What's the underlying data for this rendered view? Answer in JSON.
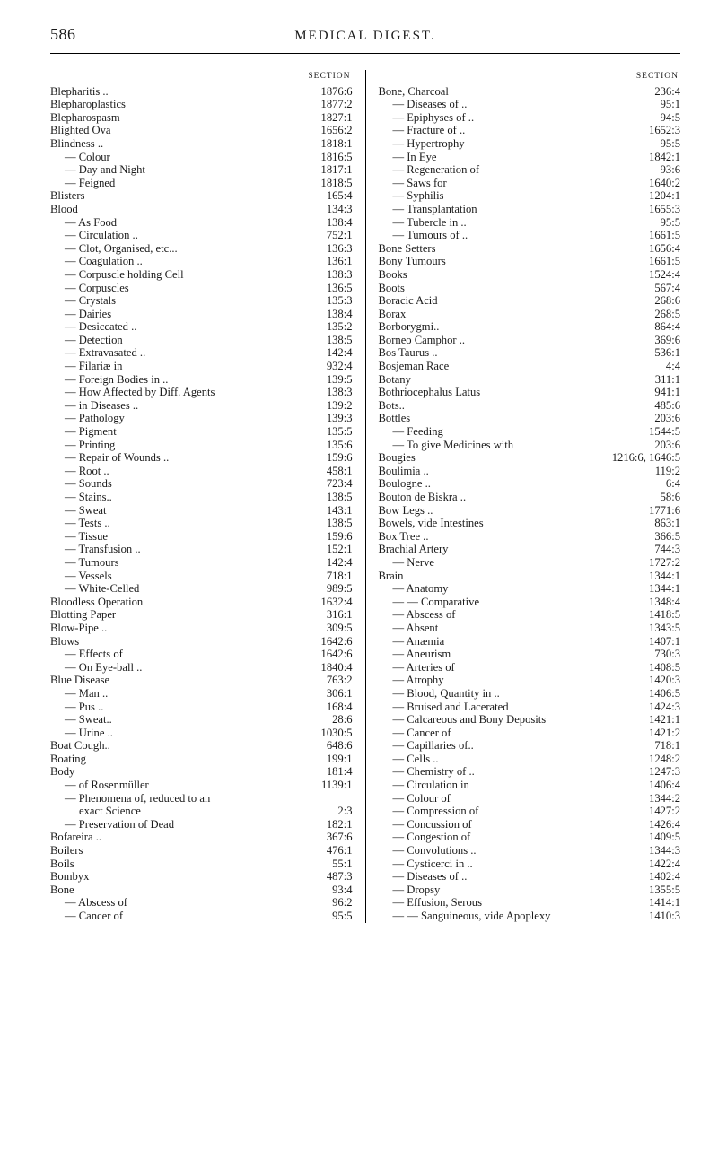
{
  "page_number": "586",
  "header_title": "MEDICAL DIGEST.",
  "section_heading": "SECTION",
  "columns": {
    "left": [
      {
        "label": "Blepharitis ..",
        "num": "1876:6",
        "indent": 0
      },
      {
        "label": "Blepharoplastics",
        "num": "1877:2",
        "indent": 0
      },
      {
        "label": "Blepharospasm",
        "num": "1827:1",
        "indent": 0
      },
      {
        "label": "Blighted Ova",
        "num": "1656:2",
        "indent": 0
      },
      {
        "label": "Blindness ..",
        "num": "1818:1",
        "indent": 0
      },
      {
        "label": "— Colour",
        "num": "1816:5",
        "indent": 1
      },
      {
        "label": "— Day and Night",
        "num": "1817:1",
        "indent": 1
      },
      {
        "label": "— Feigned",
        "num": "1818:5",
        "indent": 1
      },
      {
        "label": "Blisters",
        "num": "165:4",
        "indent": 0
      },
      {
        "label": "Blood",
        "num": "134:3",
        "indent": 0
      },
      {
        "label": "— As Food",
        "num": "138:4",
        "indent": 1
      },
      {
        "label": "— Circulation ..",
        "num": "752:1",
        "indent": 1
      },
      {
        "label": "— Clot, Organised, etc...",
        "num": "136:3",
        "indent": 1
      },
      {
        "label": "— Coagulation ..",
        "num": "136:1",
        "indent": 1
      },
      {
        "label": "— Corpuscle holding Cell",
        "num": "138:3",
        "indent": 1
      },
      {
        "label": "— Corpuscles",
        "num": "136:5",
        "indent": 1
      },
      {
        "label": "— Crystals",
        "num": "135:3",
        "indent": 1
      },
      {
        "label": "— Dairies",
        "num": "138:4",
        "indent": 1
      },
      {
        "label": "— Desiccated ..",
        "num": "135:2",
        "indent": 1
      },
      {
        "label": "— Detection",
        "num": "138:5",
        "indent": 1
      },
      {
        "label": "— Extravasated ..",
        "num": "142:4",
        "indent": 1
      },
      {
        "label": "— Filariæ in",
        "num": "932:4",
        "indent": 1
      },
      {
        "label": "— Foreign Bodies in ..",
        "num": "139:5",
        "indent": 1
      },
      {
        "label": "— How Affected by Diff. Agents",
        "num": "138:3",
        "indent": 1
      },
      {
        "label": "— in Diseases ..",
        "num": "139:2",
        "indent": 1
      },
      {
        "label": "— Pathology",
        "num": "139:3",
        "indent": 1
      },
      {
        "label": "— Pigment",
        "num": "135:5",
        "indent": 1
      },
      {
        "label": "— Printing",
        "num": "135:6",
        "indent": 1
      },
      {
        "label": "— Repair of Wounds ..",
        "num": "159:6",
        "indent": 1
      },
      {
        "label": "— Root ..",
        "num": "458:1",
        "indent": 1
      },
      {
        "label": "— Sounds",
        "num": "723:4",
        "indent": 1
      },
      {
        "label": "— Stains..",
        "num": "138:5",
        "indent": 1
      },
      {
        "label": "— Sweat",
        "num": "143:1",
        "indent": 1
      },
      {
        "label": "— Tests ..",
        "num": "138:5",
        "indent": 1
      },
      {
        "label": "— Tissue",
        "num": "159:6",
        "indent": 1
      },
      {
        "label": "— Transfusion ..",
        "num": "152:1",
        "indent": 1
      },
      {
        "label": "— Tumours",
        "num": "142:4",
        "indent": 1
      },
      {
        "label": "— Vessels",
        "num": "718:1",
        "indent": 1
      },
      {
        "label": "— White-Celled",
        "num": "989:5",
        "indent": 1
      },
      {
        "label": "Bloodless Operation",
        "num": "1632:4",
        "indent": 0
      },
      {
        "label": "Blotting Paper",
        "num": "316:1",
        "indent": 0
      },
      {
        "label": "Blow-Pipe ..",
        "num": "309:5",
        "indent": 0
      },
      {
        "label": "Blows",
        "num": "1642:6",
        "indent": 0
      },
      {
        "label": "— Effects of",
        "num": "1642:6",
        "indent": 1
      },
      {
        "label": "— On Eye-ball ..",
        "num": "1840:4",
        "indent": 1
      },
      {
        "label": "Blue Disease",
        "num": "763:2",
        "indent": 0
      },
      {
        "label": "— Man ..",
        "num": "306:1",
        "indent": 1
      },
      {
        "label": "— Pus ..",
        "num": "168:4",
        "indent": 1
      },
      {
        "label": "— Sweat..",
        "num": "28:6",
        "indent": 1
      },
      {
        "label": "— Urine ..",
        "num": "1030:5",
        "indent": 1
      },
      {
        "label": "Boat Cough..",
        "num": "648:6",
        "indent": 0
      },
      {
        "label": "Boating",
        "num": "199:1",
        "indent": 0
      },
      {
        "label": "Body",
        "num": "181:4",
        "indent": 0
      },
      {
        "label": "— of Rosenmüller",
        "num": "1139:1",
        "indent": 1
      },
      {
        "label": "— Phenomena of, reduced to an",
        "num": "",
        "indent": 1
      },
      {
        "label": "exact Science",
        "num": "2:3",
        "indent": 2
      },
      {
        "label": "— Preservation of Dead",
        "num": "182:1",
        "indent": 1
      },
      {
        "label": "Bofareira ..",
        "num": "367:6",
        "indent": 0
      },
      {
        "label": "Boilers",
        "num": "476:1",
        "indent": 0
      },
      {
        "label": "Boils",
        "num": "55:1",
        "indent": 0
      },
      {
        "label": "Bombyx",
        "num": "487:3",
        "indent": 0
      },
      {
        "label": "Bone",
        "num": "93:4",
        "indent": 0
      },
      {
        "label": "— Abscess of",
        "num": "96:2",
        "indent": 1
      },
      {
        "label": "— Cancer of",
        "num": "95:5",
        "indent": 1
      }
    ],
    "right": [
      {
        "label": "Bone, Charcoal",
        "num": "236:4",
        "indent": 0
      },
      {
        "label": "— Diseases of ..",
        "num": "95:1",
        "indent": 1
      },
      {
        "label": "— Epiphyses of ..",
        "num": "94:5",
        "indent": 1
      },
      {
        "label": "— Fracture of ..",
        "num": "1652:3",
        "indent": 1
      },
      {
        "label": "— Hypertrophy",
        "num": "95:5",
        "indent": 1
      },
      {
        "label": "— In Eye",
        "num": "1842:1",
        "indent": 1
      },
      {
        "label": "— Regeneration of",
        "num": "93:6",
        "indent": 1
      },
      {
        "label": "— Saws for",
        "num": "1640:2",
        "indent": 1
      },
      {
        "label": "— Syphilis",
        "num": "1204:1",
        "indent": 1
      },
      {
        "label": "— Transplantation",
        "num": "1655:3",
        "indent": 1
      },
      {
        "label": "— Tubercle in ..",
        "num": "95:5",
        "indent": 1
      },
      {
        "label": "— Tumours of ..",
        "num": "1661:5",
        "indent": 1
      },
      {
        "label": "Bone Setters",
        "num": "1656:4",
        "indent": 0
      },
      {
        "label": "Bony Tumours",
        "num": "1661:5",
        "indent": 0
      },
      {
        "label": "Books",
        "num": "1524:4",
        "indent": 0
      },
      {
        "label": "Boots",
        "num": "567:4",
        "indent": 0
      },
      {
        "label": "Boracic Acid",
        "num": "268:6",
        "indent": 0
      },
      {
        "label": "Borax",
        "num": "268:5",
        "indent": 0
      },
      {
        "label": "Borborygmi..",
        "num": "864:4",
        "indent": 0
      },
      {
        "label": "Borneo Camphor ..",
        "num": "369:6",
        "indent": 0
      },
      {
        "label": "Bos Taurus ..",
        "num": "536:1",
        "indent": 0
      },
      {
        "label": "Bosjeman Race",
        "num": "4:4",
        "indent": 0
      },
      {
        "label": "Botany",
        "num": "311:1",
        "indent": 0
      },
      {
        "label": "Bothriocephalus Latus",
        "num": "941:1",
        "indent": 0
      },
      {
        "label": "Bots..",
        "num": "485:6",
        "indent": 0
      },
      {
        "label": "Bottles",
        "num": "203:6",
        "indent": 0
      },
      {
        "label": "— Feeding",
        "num": "1544:5",
        "indent": 1
      },
      {
        "label": "— To give Medicines with",
        "num": "203:6",
        "indent": 1
      },
      {
        "label": "Bougies",
        "num": "1216:6, 1646:5",
        "indent": 0
      },
      {
        "label": "Boulimia ..",
        "num": "119:2",
        "indent": 0
      },
      {
        "label": "Boulogne ..",
        "num": "6:4",
        "indent": 0
      },
      {
        "label": "Bouton de Biskra ..",
        "num": "58:6",
        "indent": 0
      },
      {
        "label": "Bow Legs ..",
        "num": "1771:6",
        "indent": 0
      },
      {
        "label": "Bowels, vide Intestines",
        "num": "863:1",
        "indent": 0
      },
      {
        "label": "Box Tree ..",
        "num": "366:5",
        "indent": 0
      },
      {
        "label": "Brachial Artery",
        "num": "744:3",
        "indent": 0
      },
      {
        "label": "— Nerve",
        "num": "1727:2",
        "indent": 1
      },
      {
        "label": "Brain",
        "num": "1344:1",
        "indent": 0
      },
      {
        "label": "— Anatomy",
        "num": "1344:1",
        "indent": 1
      },
      {
        "label": "— — Comparative",
        "num": "1348:4",
        "indent": 1
      },
      {
        "label": "— Abscess of",
        "num": "1418:5",
        "indent": 1
      },
      {
        "label": "— Absent",
        "num": "1343:5",
        "indent": 1
      },
      {
        "label": "— Anæmia",
        "num": "1407:1",
        "indent": 1
      },
      {
        "label": "— Aneurism",
        "num": "730:3",
        "indent": 1
      },
      {
        "label": "— Arteries of",
        "num": "1408:5",
        "indent": 1
      },
      {
        "label": "— Atrophy",
        "num": "1420:3",
        "indent": 1
      },
      {
        "label": "— Blood, Quantity in ..",
        "num": "1406:5",
        "indent": 1
      },
      {
        "label": "— Bruised and Lacerated",
        "num": "1424:3",
        "indent": 1
      },
      {
        "label": "— Calcareous and Bony Deposits",
        "num": "1421:1",
        "indent": 1
      },
      {
        "label": "— Cancer of",
        "num": "1421:2",
        "indent": 1
      },
      {
        "label": "— Capillaries of..",
        "num": "718:1",
        "indent": 1
      },
      {
        "label": "— Cells ..",
        "num": "1248:2",
        "indent": 1
      },
      {
        "label": "— Chemistry of ..",
        "num": "1247:3",
        "indent": 1
      },
      {
        "label": "— Circulation in",
        "num": "1406:4",
        "indent": 1
      },
      {
        "label": "— Colour of",
        "num": "1344:2",
        "indent": 1
      },
      {
        "label": "— Compression of",
        "num": "1427:2",
        "indent": 1
      },
      {
        "label": "— Concussion of",
        "num": "1426:4",
        "indent": 1
      },
      {
        "label": "— Congestion of",
        "num": "1409:5",
        "indent": 1
      },
      {
        "label": "— Convolutions ..",
        "num": "1344:3",
        "indent": 1
      },
      {
        "label": "— Cysticerci in ..",
        "num": "1422:4",
        "indent": 1
      },
      {
        "label": "— Diseases of ..",
        "num": "1402:4",
        "indent": 1
      },
      {
        "label": "— Dropsy",
        "num": "1355:5",
        "indent": 1
      },
      {
        "label": "— Effusion, Serous",
        "num": "1414:1",
        "indent": 1
      },
      {
        "label": "— — Sanguineous, vide Apoplexy",
        "num": "1410:3",
        "indent": 1
      }
    ]
  }
}
